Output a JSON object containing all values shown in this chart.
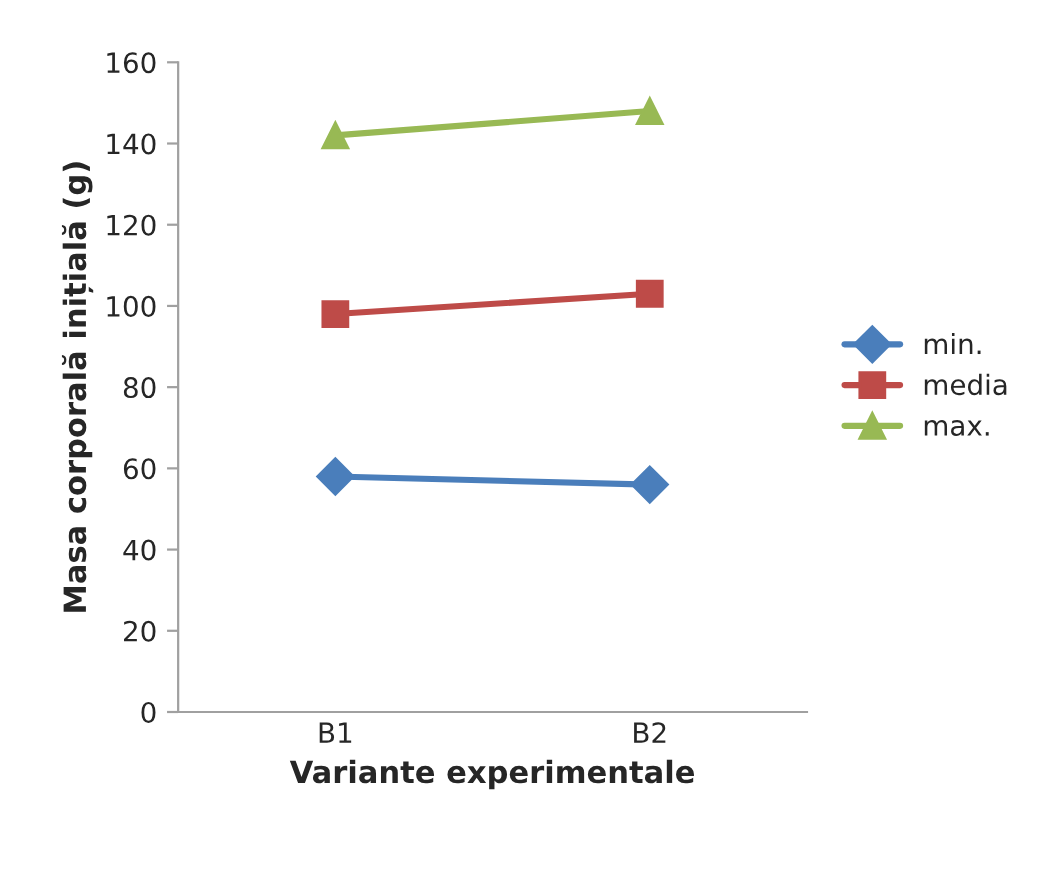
{
  "chart_data": {
    "type": "line",
    "xlabel": "Variante experimentale",
    "ylabel": "Masa corporală inițială (g)",
    "categories": [
      "B1",
      "B2"
    ],
    "series": [
      {
        "name": "min.",
        "color": "#4a7ebb",
        "marker": "diamond",
        "values": [
          58,
          56
        ]
      },
      {
        "name": "media",
        "color": "#be4b48",
        "marker": "square",
        "values": [
          98,
          103
        ]
      },
      {
        "name": "max.",
        "color": "#98b954",
        "marker": "triangle",
        "values": [
          142,
          148
        ]
      }
    ],
    "ylim": [
      0,
      160
    ],
    "yticks": [
      0,
      20,
      40,
      60,
      80,
      100,
      120,
      140,
      160
    ],
    "grid": false,
    "legend": "right",
    "line_style": "solid"
  }
}
